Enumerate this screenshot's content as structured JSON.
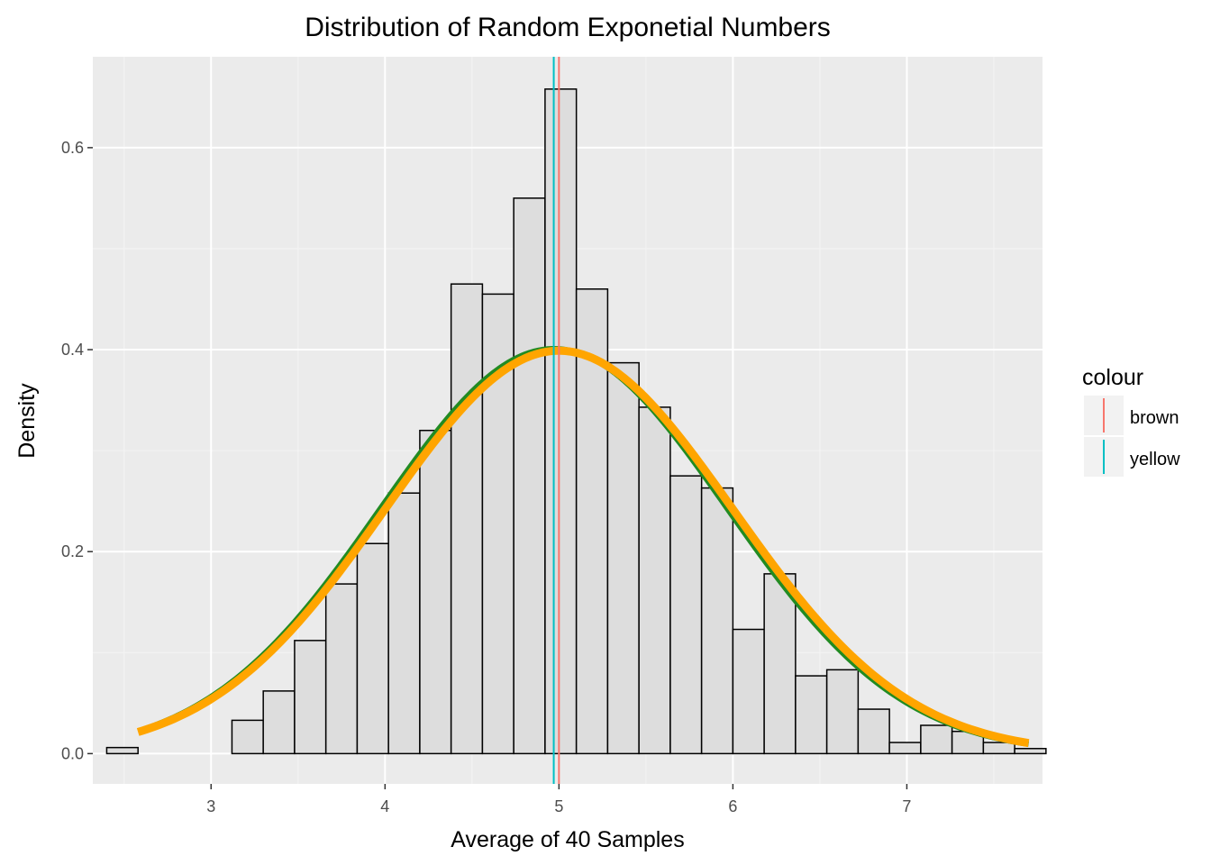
{
  "chart_data": {
    "type": "bar",
    "title": "Distribution of Random Exponetial Numbers",
    "xlabel": "Average of 40 Samples",
    "ylabel": "Density",
    "xlim": [
      2.32,
      7.78
    ],
    "ylim": [
      -0.03,
      0.69
    ],
    "x_ticks": [
      3,
      4,
      5,
      6,
      7
    ],
    "y_ticks": [
      0.0,
      0.2,
      0.4,
      0.6
    ],
    "y_tick_labels": [
      "0.0",
      "0.2",
      "0.4",
      "0.6"
    ],
    "grid": true,
    "histogram": {
      "bin_width": 0.18,
      "bins": [
        {
          "x0": 2.4,
          "density": 0.006
        },
        {
          "x0": 2.58,
          "density": 0.0
        },
        {
          "x0": 2.76,
          "density": 0.0
        },
        {
          "x0": 2.94,
          "density": 0.0
        },
        {
          "x0": 3.12,
          "density": 0.033
        },
        {
          "x0": 3.3,
          "density": 0.062
        },
        {
          "x0": 3.48,
          "density": 0.112
        },
        {
          "x0": 3.66,
          "density": 0.168
        },
        {
          "x0": 3.84,
          "density": 0.208
        },
        {
          "x0": 4.02,
          "density": 0.258
        },
        {
          "x0": 4.2,
          "density": 0.32
        },
        {
          "x0": 4.38,
          "density": 0.465
        },
        {
          "x0": 4.56,
          "density": 0.455
        },
        {
          "x0": 4.74,
          "density": 0.55
        },
        {
          "x0": 4.92,
          "density": 0.658
        },
        {
          "x0": 5.1,
          "density": 0.46
        },
        {
          "x0": 5.28,
          "density": 0.387
        },
        {
          "x0": 5.46,
          "density": 0.343
        },
        {
          "x0": 5.64,
          "density": 0.275
        },
        {
          "x0": 5.82,
          "density": 0.263
        },
        {
          "x0": 6.0,
          "density": 0.123
        },
        {
          "x0": 6.18,
          "density": 0.178
        },
        {
          "x0": 6.36,
          "density": 0.077
        },
        {
          "x0": 6.54,
          "density": 0.083
        },
        {
          "x0": 6.72,
          "density": 0.044
        },
        {
          "x0": 6.9,
          "density": 0.011
        },
        {
          "x0": 7.08,
          "density": 0.028
        },
        {
          "x0": 7.26,
          "density": 0.022
        },
        {
          "x0": 7.44,
          "density": 0.011
        },
        {
          "x0": 7.62,
          "density": 0.005
        }
      ]
    },
    "density_curves": [
      {
        "color": "#228B22",
        "mean": 4.97,
        "sd": 0.995,
        "x_range": [
          2.58,
          7.7
        ]
      },
      {
        "color": "#FFA500",
        "mean": 5.0,
        "sd": 1.0,
        "x_range": [
          2.58,
          7.7
        ]
      }
    ],
    "vlines": [
      {
        "name": "brown",
        "x": 5.0,
        "color": "#F8766D"
      },
      {
        "name": "yellow",
        "x": 4.97,
        "color": "#00BFC4"
      }
    ],
    "legend": {
      "title": "colour",
      "position": "right",
      "entries": [
        {
          "label": "brown",
          "color": "#F8766D"
        },
        {
          "label": "yellow",
          "color": "#00BFC4"
        }
      ]
    }
  }
}
